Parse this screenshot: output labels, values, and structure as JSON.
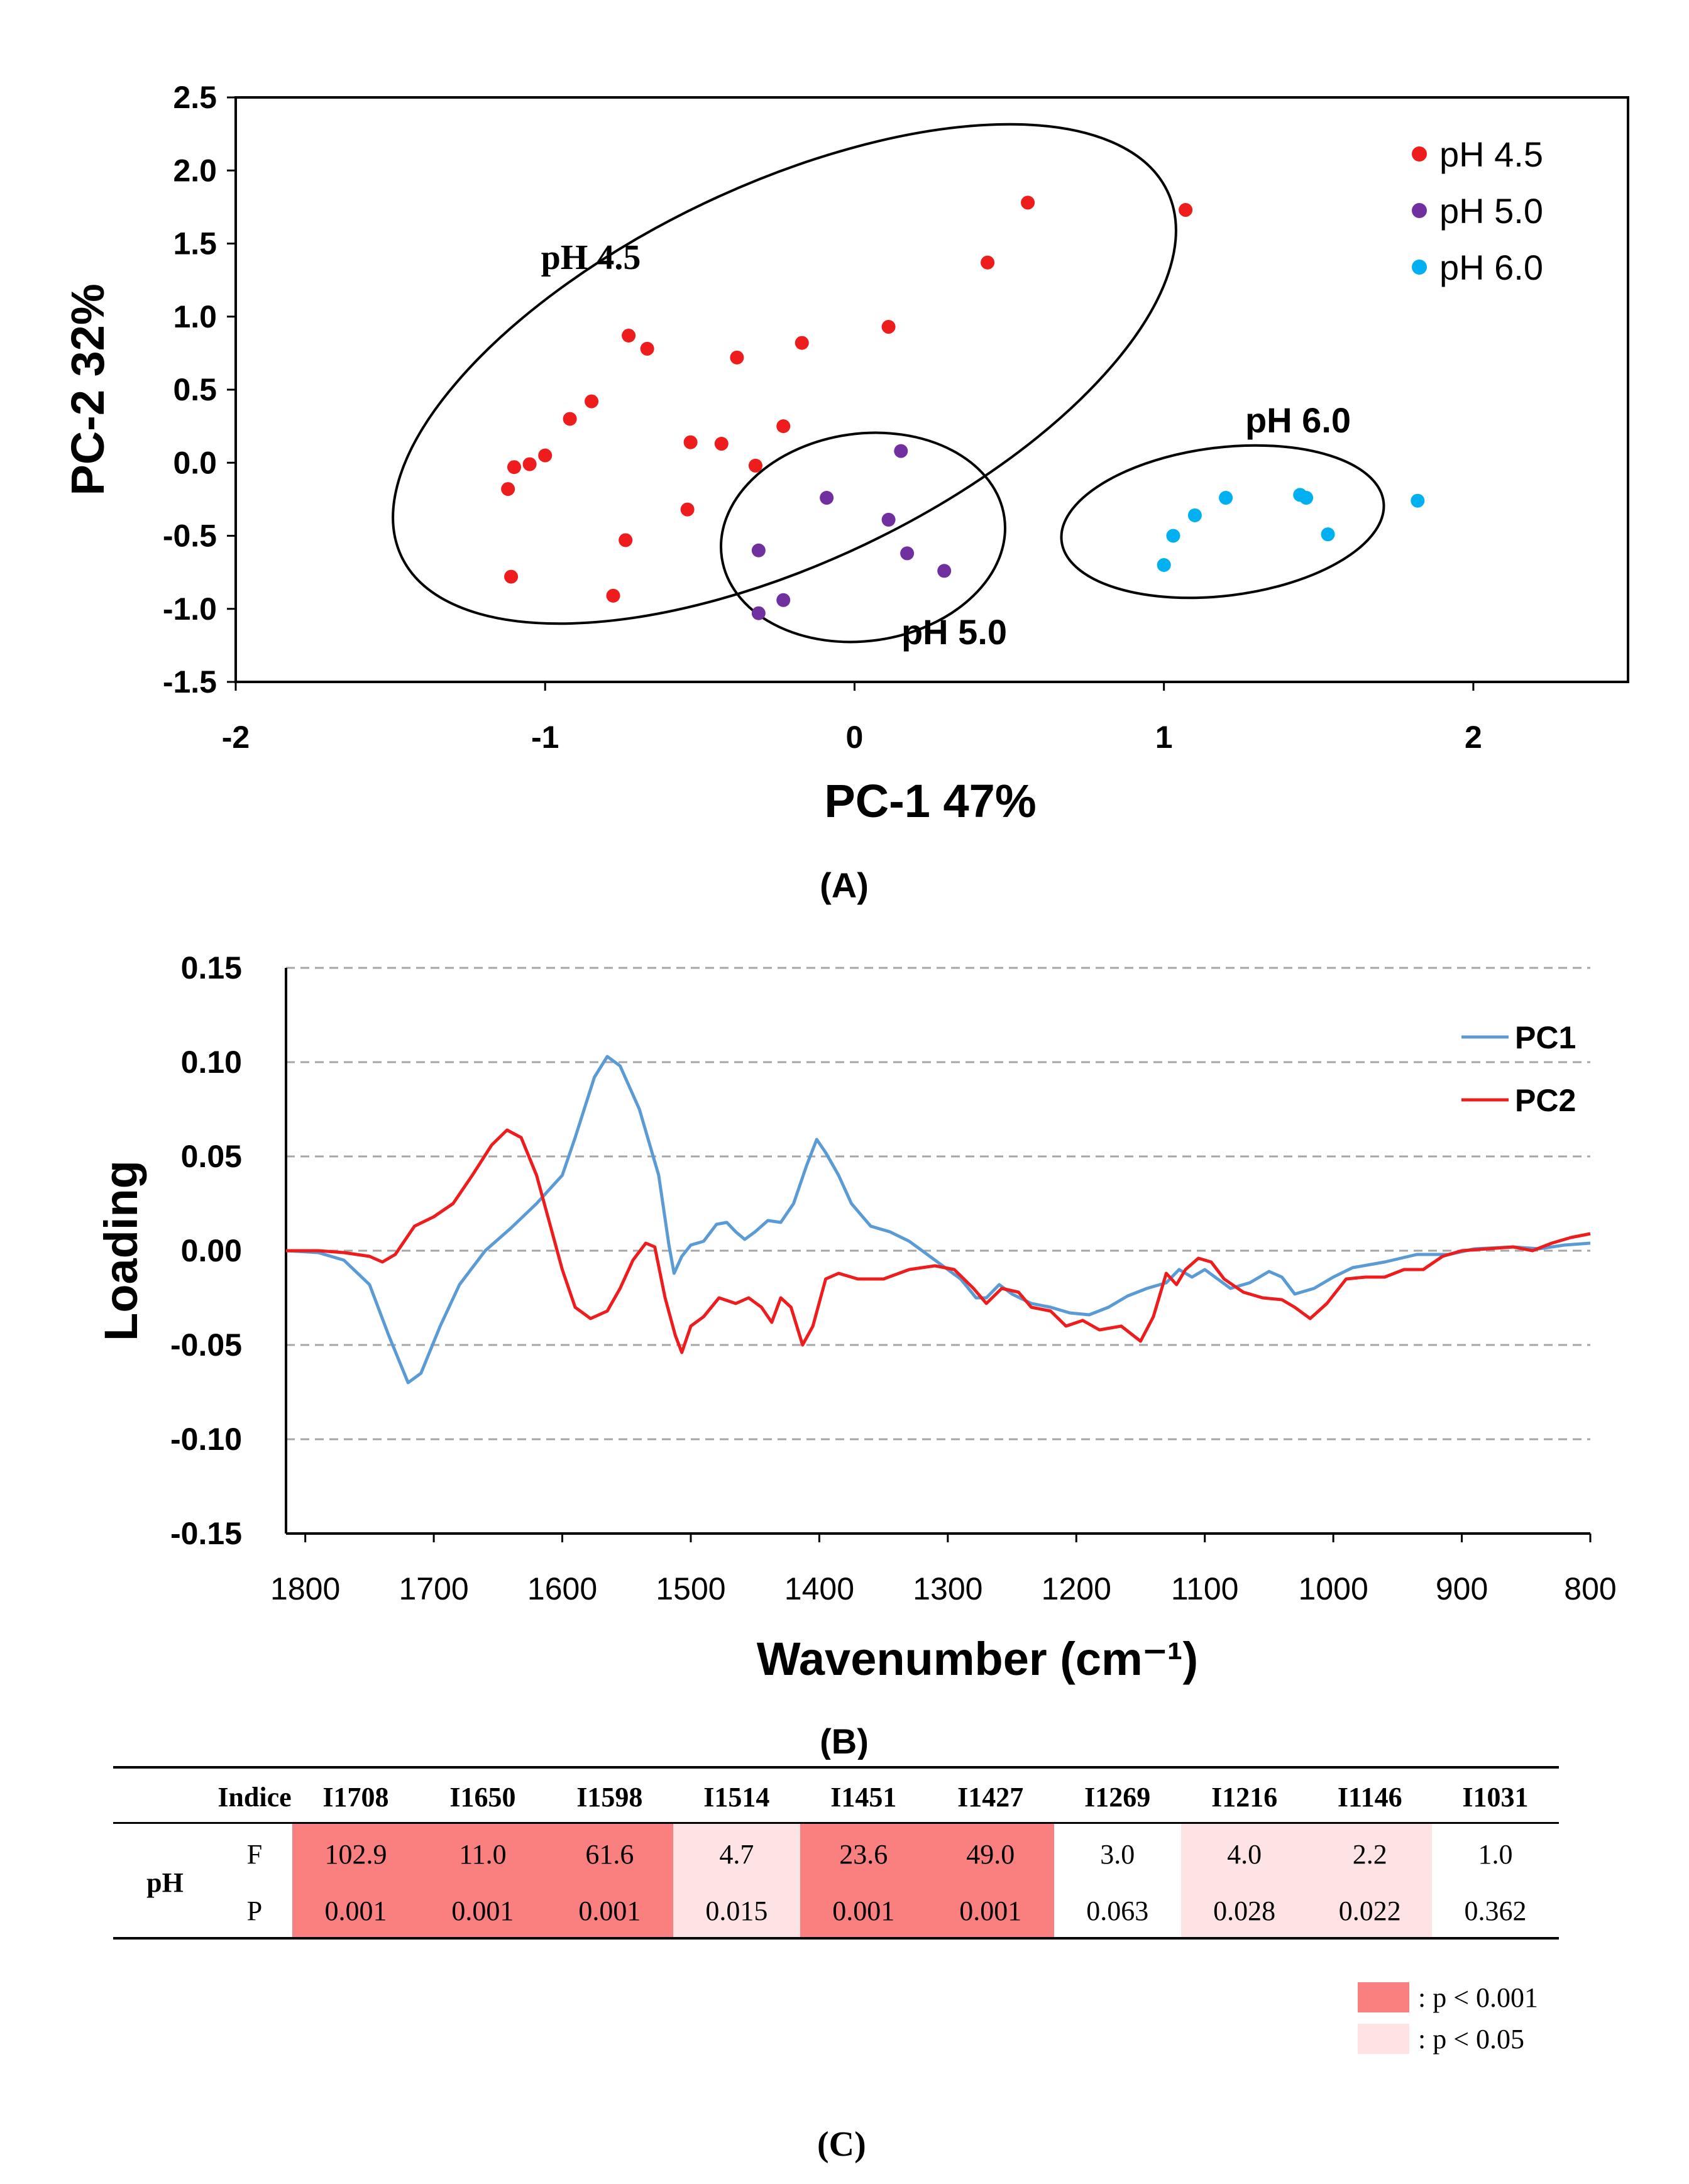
{
  "chart_data": [
    {
      "type": "scatter",
      "panel_label": "(A)",
      "title": "",
      "xlabel": "PC-1 47%",
      "ylabel": "PC-2 32%",
      "xlim": [
        -2,
        2.5
      ],
      "ylim": [
        -1.5,
        2.5
      ],
      "x_ticks": [
        "-2",
        "-1",
        "0",
        "1",
        "2"
      ],
      "y_ticks": [
        "2.5",
        "2.0",
        "1.5",
        "1.0",
        "0.5",
        "0.0",
        "-0.5",
        "-1.0",
        "-1.5"
      ],
      "legend_position": "top-right",
      "series": [
        {
          "name": "pH 4.5",
          "color": "#ee1c1c",
          "points": [
            [
              -0.73,
              0.87
            ],
            [
              -0.67,
              0.78
            ],
            [
              -0.38,
              0.72
            ],
            [
              -0.17,
              0.82
            ],
            [
              0.11,
              0.93
            ],
            [
              0.43,
              1.37
            ],
            [
              0.56,
              1.78
            ],
            [
              1.07,
              1.73
            ],
            [
              -0.85,
              0.42
            ],
            [
              -0.92,
              0.3
            ],
            [
              -1.0,
              0.05
            ],
            [
              -1.05,
              -0.01
            ],
            [
              -1.1,
              -0.03
            ],
            [
              -1.12,
              -0.18
            ],
            [
              -0.53,
              0.14
            ],
            [
              -0.43,
              0.13
            ],
            [
              -0.32,
              -0.02
            ],
            [
              -0.23,
              0.25
            ],
            [
              -0.54,
              -0.32
            ],
            [
              -0.74,
              -0.53
            ],
            [
              -1.11,
              -0.78
            ],
            [
              -0.78,
              -0.91
            ]
          ]
        },
        {
          "name": "pH 5.0",
          "color": "#7030a0",
          "points": [
            [
              0.15,
              0.08
            ],
            [
              -0.09,
              -0.24
            ],
            [
              0.11,
              -0.39
            ],
            [
              -0.31,
              -0.6
            ],
            [
              0.17,
              -0.62
            ],
            [
              0.29,
              -0.74
            ],
            [
              -0.23,
              -0.94
            ],
            [
              -0.31,
              -1.03
            ]
          ]
        },
        {
          "name": "pH 6.0",
          "color": "#00b0f0",
          "points": [
            [
              1.2,
              -0.24
            ],
            [
              1.44,
              -0.22
            ],
            [
              1.46,
              -0.24
            ],
            [
              1.82,
              -0.26
            ],
            [
              1.1,
              -0.36
            ],
            [
              1.03,
              -0.5
            ],
            [
              1.53,
              -0.49
            ],
            [
              1.0,
              -0.7
            ]
          ]
        }
      ],
      "group_labels": [
        "pH 4.5",
        "pH 5.0",
        "pH 6.0"
      ]
    },
    {
      "type": "line",
      "panel_label": "(B)",
      "title": "",
      "xlabel": "Wavenumber (cm⁻¹)",
      "ylabel": "Loading",
      "xlim": [
        1815,
        800
      ],
      "ylim": [
        -0.15,
        0.15
      ],
      "x_ticks": [
        "1800",
        "1700",
        "1600",
        "1500",
        "1400",
        "1300",
        "1200",
        "1100",
        "1000",
        "900",
        "800"
      ],
      "y_ticks": [
        "0.15",
        "0.10",
        "0.05",
        "0.00",
        "-0.05",
        "-0.10",
        "-0.15"
      ],
      "gridlines": "horizontal dashed",
      "legend_position": "top-right",
      "series": [
        {
          "name": "PC1",
          "color": "#5b9bd5",
          "points": [
            [
              1815,
              0.0
            ],
            [
              1790,
              -0.001
            ],
            [
              1770,
              -0.005
            ],
            [
              1750,
              -0.018
            ],
            [
              1735,
              -0.045
            ],
            [
              1720,
              -0.07
            ],
            [
              1710,
              -0.065
            ],
            [
              1695,
              -0.04
            ],
            [
              1680,
              -0.018
            ],
            [
              1660,
              0.0
            ],
            [
              1640,
              0.012
            ],
            [
              1620,
              0.025
            ],
            [
              1600,
              0.04
            ],
            [
              1590,
              0.06
            ],
            [
              1575,
              0.092
            ],
            [
              1565,
              0.103
            ],
            [
              1555,
              0.098
            ],
            [
              1540,
              0.075
            ],
            [
              1525,
              0.04
            ],
            [
              1517,
              0.003
            ],
            [
              1513,
              -0.012
            ],
            [
              1507,
              -0.003
            ],
            [
              1500,
              0.003
            ],
            [
              1490,
              0.005
            ],
            [
              1480,
              0.014
            ],
            [
              1472,
              0.015
            ],
            [
              1465,
              0.01
            ],
            [
              1458,
              0.006
            ],
            [
              1450,
              0.01
            ],
            [
              1440,
              0.016
            ],
            [
              1430,
              0.015
            ],
            [
              1420,
              0.025
            ],
            [
              1410,
              0.045
            ],
            [
              1402,
              0.059
            ],
            [
              1395,
              0.052
            ],
            [
              1385,
              0.04
            ],
            [
              1375,
              0.025
            ],
            [
              1360,
              0.013
            ],
            [
              1345,
              0.01
            ],
            [
              1330,
              0.005
            ],
            [
              1310,
              -0.005
            ],
            [
              1290,
              -0.015
            ],
            [
              1278,
              -0.025
            ],
            [
              1270,
              -0.025
            ],
            [
              1260,
              -0.018
            ],
            [
              1250,
              -0.023
            ],
            [
              1235,
              -0.028
            ],
            [
              1220,
              -0.03
            ],
            [
              1205,
              -0.033
            ],
            [
              1190,
              -0.034
            ],
            [
              1175,
              -0.03
            ],
            [
              1160,
              -0.024
            ],
            [
              1145,
              -0.02
            ],
            [
              1130,
              -0.017
            ],
            [
              1120,
              -0.01
            ],
            [
              1110,
              -0.014
            ],
            [
              1100,
              -0.01
            ],
            [
              1090,
              -0.015
            ],
            [
              1080,
              -0.02
            ],
            [
              1065,
              -0.017
            ],
            [
              1050,
              -0.011
            ],
            [
              1040,
              -0.014
            ],
            [
              1030,
              -0.023
            ],
            [
              1015,
              -0.02
            ],
            [
              1000,
              -0.014
            ],
            [
              985,
              -0.009
            ],
            [
              960,
              -0.006
            ],
            [
              935,
              -0.002
            ],
            [
              910,
              -0.002
            ],
            [
              890,
              0.001
            ],
            [
              860,
              0.002
            ],
            [
              840,
              0.001
            ],
            [
              820,
              0.003
            ],
            [
              800,
              0.004
            ]
          ]
        },
        {
          "name": "PC2",
          "color": "#ee1c1c",
          "points": [
            [
              1815,
              0.0
            ],
            [
              1790,
              0.0
            ],
            [
              1770,
              -0.001
            ],
            [
              1750,
              -0.003
            ],
            [
              1740,
              -0.006
            ],
            [
              1730,
              -0.002
            ],
            [
              1715,
              0.013
            ],
            [
              1700,
              0.018
            ],
            [
              1685,
              0.025
            ],
            [
              1670,
              0.04
            ],
            [
              1655,
              0.056
            ],
            [
              1643,
              0.064
            ],
            [
              1632,
              0.06
            ],
            [
              1620,
              0.04
            ],
            [
              1610,
              0.015
            ],
            [
              1600,
              -0.01
            ],
            [
              1590,
              -0.03
            ],
            [
              1578,
              -0.036
            ],
            [
              1565,
              -0.032
            ],
            [
              1555,
              -0.02
            ],
            [
              1545,
              -0.005
            ],
            [
              1535,
              0.004
            ],
            [
              1528,
              0.002
            ],
            [
              1520,
              -0.025
            ],
            [
              1512,
              -0.045
            ],
            [
              1507,
              -0.054
            ],
            [
              1500,
              -0.04
            ],
            [
              1490,
              -0.035
            ],
            [
              1478,
              -0.025
            ],
            [
              1465,
              -0.028
            ],
            [
              1455,
              -0.025
            ],
            [
              1445,
              -0.03
            ],
            [
              1437,
              -0.038
            ],
            [
              1430,
              -0.025
            ],
            [
              1422,
              -0.03
            ],
            [
              1413,
              -0.05
            ],
            [
              1405,
              -0.04
            ],
            [
              1395,
              -0.015
            ],
            [
              1385,
              -0.012
            ],
            [
              1370,
              -0.015
            ],
            [
              1350,
              -0.015
            ],
            [
              1330,
              -0.01
            ],
            [
              1310,
              -0.008
            ],
            [
              1295,
              -0.01
            ],
            [
              1280,
              -0.02
            ],
            [
              1270,
              -0.028
            ],
            [
              1258,
              -0.02
            ],
            [
              1245,
              -0.022
            ],
            [
              1235,
              -0.03
            ],
            [
              1220,
              -0.032
            ],
            [
              1208,
              -0.04
            ],
            [
              1195,
              -0.037
            ],
            [
              1182,
              -0.042
            ],
            [
              1165,
              -0.04
            ],
            [
              1150,
              -0.048
            ],
            [
              1140,
              -0.035
            ],
            [
              1130,
              -0.012
            ],
            [
              1122,
              -0.018
            ],
            [
              1115,
              -0.01
            ],
            [
              1105,
              -0.004
            ],
            [
              1095,
              -0.006
            ],
            [
              1085,
              -0.015
            ],
            [
              1070,
              -0.022
            ],
            [
              1055,
              -0.025
            ],
            [
              1040,
              -0.026
            ],
            [
              1030,
              -0.03
            ],
            [
              1018,
              -0.036
            ],
            [
              1005,
              -0.028
            ],
            [
              990,
              -0.015
            ],
            [
              975,
              -0.014
            ],
            [
              960,
              -0.014
            ],
            [
              945,
              -0.01
            ],
            [
              930,
              -0.01
            ],
            [
              915,
              -0.003
            ],
            [
              900,
              0.0
            ],
            [
              880,
              0.001
            ],
            [
              860,
              0.002
            ],
            [
              845,
              0.0
            ],
            [
              830,
              0.004
            ],
            [
              815,
              0.007
            ],
            [
              800,
              0.009
            ]
          ]
        }
      ]
    }
  ],
  "table": {
    "panel_label": "(C)",
    "corner": "",
    "header_label": "Indice",
    "columns": [
      "I1708",
      "I1650",
      "I1598",
      "I1514",
      "I1451",
      "I1427",
      "I1269",
      "I1216",
      "I1146",
      "I1031"
    ],
    "group_label": "pH",
    "rows": [
      {
        "label": "F",
        "values": [
          "102.9",
          "11.0",
          "61.6",
          "4.7",
          "23.6",
          "49.0",
          "3.0",
          "4.0",
          "2.2",
          "1.0"
        ]
      },
      {
        "label": "P",
        "values": [
          "0.001",
          "0.001",
          "0.001",
          "0.015",
          "0.001",
          "0.001",
          "0.063",
          "0.028",
          "0.022",
          "0.362"
        ]
      }
    ],
    "significance": [
      "p<0.001",
      "p<0.001",
      "p<0.001",
      "p<0.05",
      "p<0.001",
      "p<0.001",
      "none",
      "p<0.05",
      "p<0.05",
      "none"
    ],
    "legend": [
      {
        "label": ": p < 0.001",
        "color": "#fa7f7f"
      },
      {
        "label": ": p < 0.05",
        "color": "#fde3e3"
      }
    ]
  }
}
